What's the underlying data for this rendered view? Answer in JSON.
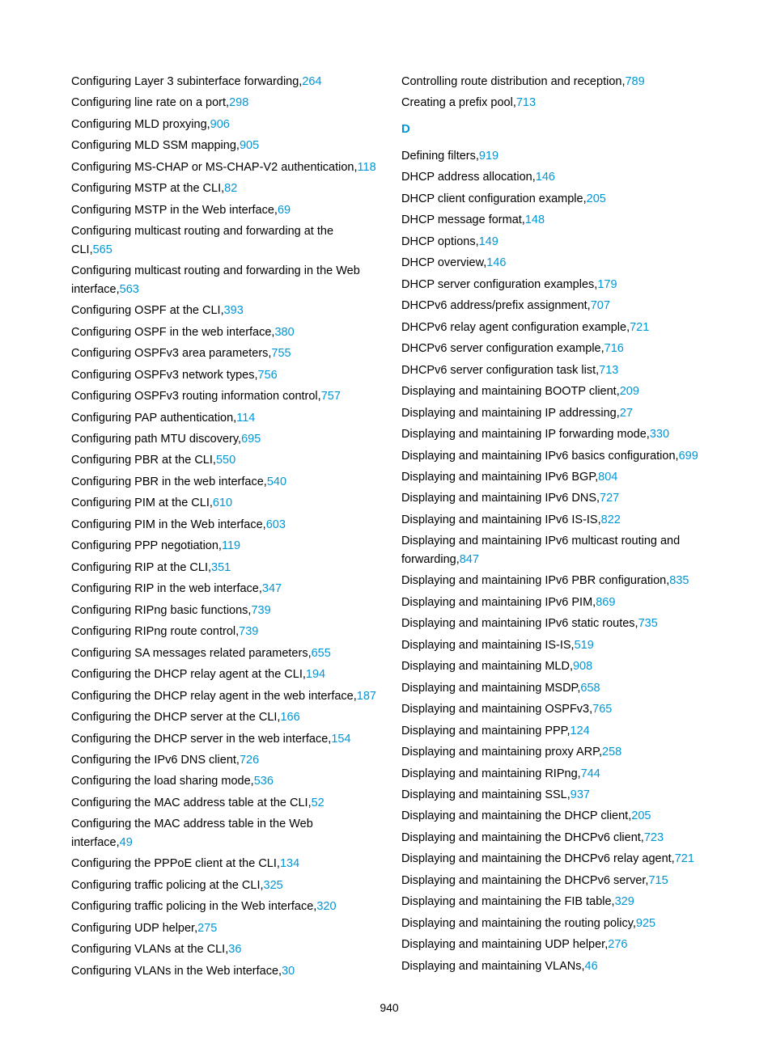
{
  "pageNumber": "940",
  "sectionD": "D",
  "left": [
    {
      "t": "Configuring Layer 3 subinterface forwarding,",
      "p": "264"
    },
    {
      "t": "Configuring line rate on a port,",
      "p": "298"
    },
    {
      "t": "Configuring MLD proxying,",
      "p": "906"
    },
    {
      "t": "Configuring MLD SSM mapping,",
      "p": "905"
    },
    {
      "t": "Configuring MS-CHAP or MS-CHAP-V2 authentication,",
      "p": "118"
    },
    {
      "t": "Configuring MSTP at the CLI,",
      "p": "82"
    },
    {
      "t": "Configuring MSTP in the Web interface,",
      "p": "69"
    },
    {
      "t": "Configuring multicast routing and forwarding at the CLI,",
      "p": "565"
    },
    {
      "t": "Configuring multicast routing and forwarding in the Web interface,",
      "p": "563"
    },
    {
      "t": "Configuring OSPF at the CLI,",
      "p": "393"
    },
    {
      "t": "Configuring OSPF in the web interface,",
      "p": "380"
    },
    {
      "t": "Configuring OSPFv3 area parameters,",
      "p": "755"
    },
    {
      "t": "Configuring OSPFv3 network types,",
      "p": "756"
    },
    {
      "t": "Configuring OSPFv3 routing information control,",
      "p": "757"
    },
    {
      "t": "Configuring PAP authentication,",
      "p": "114"
    },
    {
      "t": "Configuring path MTU discovery,",
      "p": "695"
    },
    {
      "t": "Configuring PBR at the CLI,",
      "p": "550"
    },
    {
      "t": "Configuring PBR in the web interface,",
      "p": "540"
    },
    {
      "t": "Configuring PIM at the CLI,",
      "p": "610"
    },
    {
      "t": "Configuring PIM in the Web interface,",
      "p": "603"
    },
    {
      "t": "Configuring PPP negotiation,",
      "p": "119"
    },
    {
      "t": "Configuring RIP at the CLI,",
      "p": "351"
    },
    {
      "t": "Configuring RIP in the web interface,",
      "p": "347"
    },
    {
      "t": "Configuring RIPng basic functions,",
      "p": "739"
    },
    {
      "t": "Configuring RIPng route control,",
      "p": "739"
    },
    {
      "t": "Configuring SA messages related parameters,",
      "p": "655"
    },
    {
      "t": "Configuring the DHCP relay agent at the CLI,",
      "p": "194"
    },
    {
      "t": "Configuring the DHCP relay agent in the web interface,",
      "p": "187"
    },
    {
      "t": "Configuring the DHCP server at the CLI,",
      "p": "166"
    },
    {
      "t": "Configuring the DHCP server in the web interface,",
      "p": "154"
    },
    {
      "t": "Configuring the IPv6 DNS client,",
      "p": "726"
    },
    {
      "t": "Configuring the load sharing mode,",
      "p": "536"
    },
    {
      "t": "Configuring the MAC address table at the CLI,",
      "p": "52"
    },
    {
      "t": "Configuring the MAC address table in the Web interface,",
      "p": "49"
    },
    {
      "t": "Configuring the PPPoE client at the CLI,",
      "p": "134"
    },
    {
      "t": "Configuring traffic policing at the CLI,",
      "p": "325"
    },
    {
      "t": "Configuring traffic policing in the Web interface,",
      "p": "320"
    },
    {
      "t": "Configuring UDP helper,",
      "p": "275"
    },
    {
      "t": "Configuring VLANs at the CLI,",
      "p": "36"
    },
    {
      "t": "Configuring VLANs in the Web interface,",
      "p": "30"
    }
  ],
  "rightTop": [
    {
      "t": "Controlling route distribution and reception,",
      "p": "789"
    },
    {
      "t": "Creating a prefix pool,",
      "p": "713"
    }
  ],
  "rightD": [
    {
      "t": "Defining filters,",
      "p": "919"
    },
    {
      "t": "DHCP address allocation,",
      "p": "146"
    },
    {
      "t": "DHCP client configuration example,",
      "p": "205"
    },
    {
      "t": "DHCP message format,",
      "p": "148"
    },
    {
      "t": "DHCP options,",
      "p": "149"
    },
    {
      "t": "DHCP overview,",
      "p": "146"
    },
    {
      "t": "DHCP server configuration examples,",
      "p": "179"
    },
    {
      "t": "DHCPv6 address/prefix assignment,",
      "p": "707"
    },
    {
      "t": "DHCPv6 relay agent configuration example,",
      "p": "721"
    },
    {
      "t": "DHCPv6 server configuration example,",
      "p": "716"
    },
    {
      "t": "DHCPv6 server configuration task list,",
      "p": "713"
    },
    {
      "t": "Displaying and maintaining BOOTP client,",
      "p": "209"
    },
    {
      "t": "Displaying and maintaining IP addressing,",
      "p": "27"
    },
    {
      "t": "Displaying and maintaining IP forwarding mode,",
      "p": "330"
    },
    {
      "t": "Displaying and maintaining IPv6 basics configuration,",
      "p": "699"
    },
    {
      "t": "Displaying and maintaining IPv6 BGP,",
      "p": "804"
    },
    {
      "t": "Displaying and maintaining IPv6 DNS,",
      "p": "727"
    },
    {
      "t": "Displaying and maintaining IPv6 IS-IS,",
      "p": "822"
    },
    {
      "t": "Displaying and maintaining IPv6 multicast routing and forwarding,",
      "p": "847"
    },
    {
      "t": "Displaying and maintaining IPv6 PBR configuration,",
      "p": "835"
    },
    {
      "t": "Displaying and maintaining IPv6 PIM,",
      "p": "869"
    },
    {
      "t": "Displaying and maintaining IPv6 static routes,",
      "p": "735"
    },
    {
      "t": "Displaying and maintaining IS-IS,",
      "p": "519"
    },
    {
      "t": "Displaying and maintaining MLD,",
      "p": "908"
    },
    {
      "t": "Displaying and maintaining MSDP,",
      "p": "658"
    },
    {
      "t": "Displaying and maintaining OSPFv3,",
      "p": "765"
    },
    {
      "t": "Displaying and maintaining PPP,",
      "p": "124"
    },
    {
      "t": "Displaying and maintaining proxy ARP,",
      "p": "258"
    },
    {
      "t": "Displaying and maintaining RIPng,",
      "p": "744"
    },
    {
      "t": "Displaying and maintaining SSL,",
      "p": "937"
    },
    {
      "t": "Displaying and maintaining the DHCP client,",
      "p": "205"
    },
    {
      "t": "Displaying and maintaining the DHCPv6 client,",
      "p": "723"
    },
    {
      "t": "Displaying and maintaining the DHCPv6 relay agent,",
      "p": "721"
    },
    {
      "t": "Displaying and maintaining the DHCPv6 server,",
      "p": "715"
    },
    {
      "t": "Displaying and maintaining the FIB table,",
      "p": "329"
    },
    {
      "t": "Displaying and maintaining the routing policy,",
      "p": "925"
    },
    {
      "t": "Displaying and maintaining UDP helper,",
      "p": "276"
    },
    {
      "t": "Displaying and maintaining VLANs,",
      "p": "46"
    }
  ]
}
